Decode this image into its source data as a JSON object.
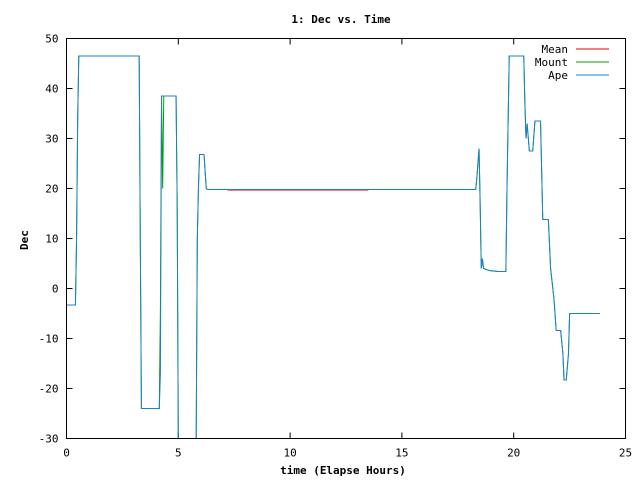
{
  "chart_data": {
    "type": "line",
    "title": "1: Dec vs. Time",
    "xlabel": "time (Elapse Hours)",
    "ylabel": "Dec",
    "xlim": [
      0,
      25
    ],
    "ylim": [
      -30,
      50
    ],
    "xticks": [
      "0",
      "5",
      "10",
      "15",
      "20",
      "25"
    ],
    "yticks": [
      "50",
      "40",
      "30",
      "20",
      "10",
      "0",
      "-10",
      "-20",
      "-30"
    ],
    "grid": false,
    "legend_position": "top-right",
    "series": [
      {
        "name": "Mean",
        "color": "#e00000",
        "segments": [
          [
            [
              0.6,
              46.5
            ],
            [
              1.1,
              46.5
            ]
          ],
          [
            [
              2.15,
              46.5
            ],
            [
              3.25,
              46.5
            ]
          ],
          [
            [
              7.2,
              19.7
            ],
            [
              13.5,
              19.7
            ]
          ]
        ]
      },
      {
        "name": "Mount",
        "color": "#00a000",
        "points": [
          [
            0.0,
            -3.3
          ],
          [
            0.4,
            -3.3
          ],
          [
            0.45,
            10
          ],
          [
            0.5,
            34
          ],
          [
            0.55,
            46.5
          ],
          [
            3.25,
            46.5
          ],
          [
            3.3,
            10
          ],
          [
            3.35,
            -24
          ],
          [
            4.15,
            -24
          ],
          [
            4.2,
            -4
          ],
          [
            4.25,
            38.5
          ],
          [
            4.3,
            20
          ],
          [
            4.35,
            38.5
          ],
          [
            4.9,
            38.5
          ],
          [
            4.95,
            17
          ],
          [
            5.0,
            -30
          ],
          [
            5.8,
            -30
          ],
          [
            5.85,
            10
          ],
          [
            5.9,
            20
          ],
          [
            5.95,
            26.8
          ],
          [
            6.15,
            26.8
          ],
          [
            6.25,
            20
          ],
          [
            6.3,
            19.8
          ],
          [
            18.3,
            19.8
          ],
          [
            18.35,
            22
          ],
          [
            18.45,
            28
          ],
          [
            18.5,
            17
          ],
          [
            18.55,
            4
          ],
          [
            18.6,
            6
          ],
          [
            18.65,
            4
          ],
          [
            18.9,
            3.6
          ],
          [
            19.3,
            3.4
          ],
          [
            19.65,
            3.4
          ],
          [
            19.7,
            20
          ],
          [
            19.8,
            46.5
          ],
          [
            20.45,
            46.5
          ],
          [
            20.5,
            37
          ],
          [
            20.55,
            30
          ],
          [
            20.6,
            33
          ],
          [
            20.7,
            27.5
          ],
          [
            20.85,
            27.5
          ],
          [
            20.95,
            33.5
          ],
          [
            21.2,
            33.5
          ],
          [
            21.3,
            13.8
          ],
          [
            21.55,
            13.8
          ],
          [
            21.65,
            4
          ],
          [
            21.8,
            -2
          ],
          [
            21.9,
            -8.4
          ],
          [
            22.1,
            -8.4
          ],
          [
            22.2,
            -13
          ],
          [
            22.25,
            -18.3
          ],
          [
            22.35,
            -18.3
          ],
          [
            22.45,
            -13
          ],
          [
            22.5,
            -5
          ],
          [
            23.85,
            -5
          ]
        ]
      },
      {
        "name": "Ape",
        "color": "#1f7fc8",
        "points": [
          [
            0.0,
            -3.3
          ],
          [
            0.4,
            -3.3
          ],
          [
            0.45,
            10
          ],
          [
            0.5,
            34
          ],
          [
            0.55,
            46.5
          ],
          [
            3.25,
            46.5
          ],
          [
            3.3,
            10
          ],
          [
            3.35,
            -24
          ],
          [
            4.15,
            -24
          ],
          [
            4.2,
            -17
          ],
          [
            4.25,
            38.5
          ],
          [
            4.9,
            38.5
          ],
          [
            4.95,
            17
          ],
          [
            5.0,
            -30
          ],
          [
            5.8,
            -30
          ],
          [
            5.85,
            10
          ],
          [
            5.9,
            20
          ],
          [
            5.95,
            26.8
          ],
          [
            6.15,
            26.8
          ],
          [
            6.25,
            20
          ],
          [
            6.3,
            19.8
          ],
          [
            18.3,
            19.8
          ],
          [
            18.35,
            22
          ],
          [
            18.45,
            28
          ],
          [
            18.5,
            17
          ],
          [
            18.55,
            4
          ],
          [
            18.6,
            6
          ],
          [
            18.65,
            4
          ],
          [
            18.9,
            3.6
          ],
          [
            19.3,
            3.4
          ],
          [
            19.65,
            3.4
          ],
          [
            19.7,
            20
          ],
          [
            19.8,
            46.5
          ],
          [
            20.45,
            46.5
          ],
          [
            20.5,
            37
          ],
          [
            20.55,
            30
          ],
          [
            20.6,
            33
          ],
          [
            20.7,
            27.5
          ],
          [
            20.85,
            27.5
          ],
          [
            20.95,
            33.5
          ],
          [
            21.2,
            33.5
          ],
          [
            21.3,
            13.8
          ],
          [
            21.55,
            13.8
          ],
          [
            21.65,
            4
          ],
          [
            21.8,
            -2
          ],
          [
            21.9,
            -8.4
          ],
          [
            22.1,
            -8.4
          ],
          [
            22.2,
            -13
          ],
          [
            22.25,
            -18.3
          ],
          [
            22.35,
            -18.3
          ],
          [
            22.45,
            -13
          ],
          [
            22.5,
            -5
          ],
          [
            23.85,
            -5
          ]
        ]
      }
    ]
  }
}
